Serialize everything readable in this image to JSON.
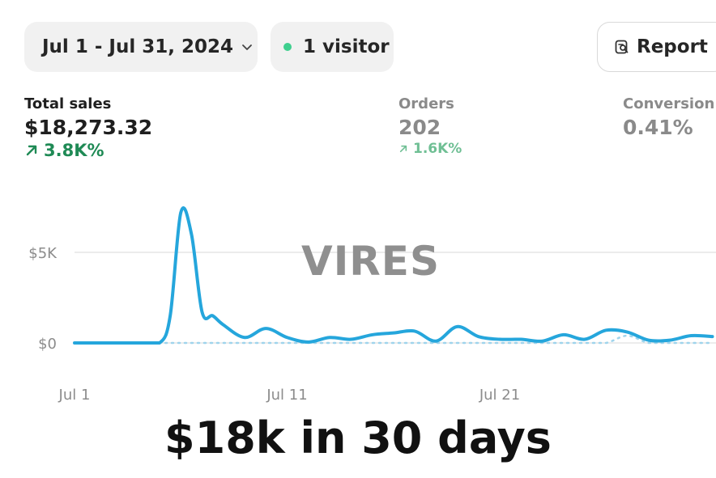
{
  "header": {
    "date_range": "Jul 1 - Jul 31, 2024",
    "visitors": "1 visitor",
    "report_label": "Report"
  },
  "metrics": {
    "total_sales": {
      "label": "Total sales",
      "value": "$18,273.32",
      "change": "3.8K%"
    },
    "orders": {
      "label": "Orders",
      "value": "202",
      "change": "1.6K%"
    },
    "conversion": {
      "label": "Conversion",
      "value": "0.41%"
    }
  },
  "watermark": "VIRES",
  "caption": "$18k in 30 days",
  "colors": {
    "line": "#25a6dc",
    "compare_line": "#9fd4ec",
    "positive": "#1f8a55",
    "live_dot": "#3ecf8e"
  },
  "chart_data": {
    "type": "line",
    "xlabel": "",
    "ylabel": "",
    "y_tick_labels": [
      "$0",
      "$5K"
    ],
    "y_ticks": [
      0,
      5000
    ],
    "ylim": [
      0,
      8000
    ],
    "x_tick_labels": [
      "Jul 1",
      "Jul 11",
      "Jul 21"
    ],
    "x_tick_days": [
      1,
      11,
      21
    ],
    "x": [
      1,
      2,
      3,
      4,
      5,
      5.5,
      6,
      6.5,
      7,
      7.5,
      8,
      9,
      10,
      11,
      12,
      13,
      14,
      15,
      16,
      17,
      18,
      19,
      20,
      21,
      22,
      23,
      24,
      25,
      26,
      27,
      28,
      29,
      30,
      31
    ],
    "series": [
      {
        "values": [
          0,
          0,
          0,
          0,
          0,
          1500,
          7200,
          6000,
          1700,
          1500,
          1000,
          300,
          800,
          300,
          50,
          300,
          200,
          450,
          550,
          650,
          100,
          900,
          350,
          200,
          200,
          100,
          450,
          200,
          700,
          600,
          150,
          150,
          400,
          350
        ]
      },
      {
        "values": [
          0,
          0,
          0,
          0,
          0,
          0,
          0,
          0,
          0,
          0,
          0,
          0,
          0,
          0,
          0,
          0,
          0,
          0,
          0,
          0,
          0,
          0,
          0,
          0,
          0,
          0,
          0,
          0,
          0,
          400,
          0,
          0,
          0,
          0
        ]
      }
    ]
  }
}
